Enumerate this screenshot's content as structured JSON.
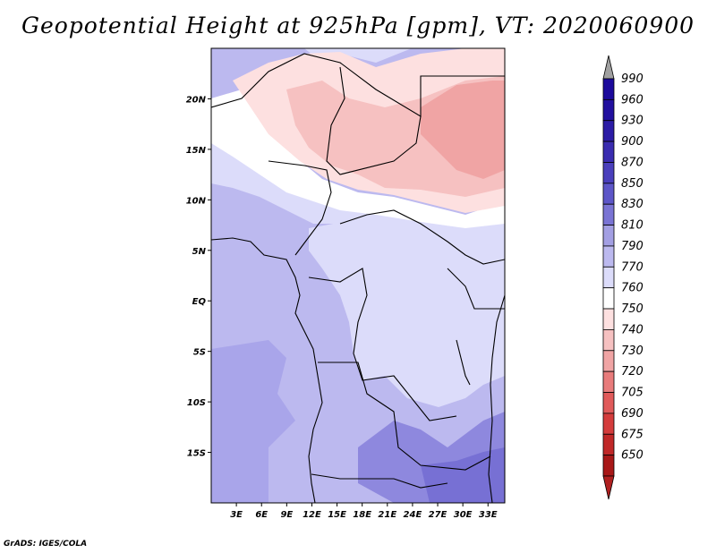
{
  "title": "Geopotential Height at 925hPa [gpm], VT: 2020060900",
  "credit": "GrADS: IGES/COLA",
  "map": {
    "variable": "Geopotential Height",
    "level": "925hPa",
    "units": "gpm",
    "valid_time": "2020060900",
    "lon_range": [
      0,
      35
    ],
    "lat_range": [
      -20,
      25
    ],
    "lat_ticks": [
      {
        "value": 20,
        "label": "20N"
      },
      {
        "value": 15,
        "label": "15N"
      },
      {
        "value": 10,
        "label": "10N"
      },
      {
        "value": 5,
        "label": "5N"
      },
      {
        "value": 0,
        "label": "EQ"
      },
      {
        "value": -5,
        "label": "5S"
      },
      {
        "value": -10,
        "label": "10S"
      },
      {
        "value": -15,
        "label": "15S"
      }
    ],
    "lon_ticks": [
      {
        "value": 3,
        "label": "3E"
      },
      {
        "value": 6,
        "label": "6E"
      },
      {
        "value": 9,
        "label": "9E"
      },
      {
        "value": 12,
        "label": "12E"
      },
      {
        "value": 15,
        "label": "15E"
      },
      {
        "value": 18,
        "label": "18E"
      },
      {
        "value": 21,
        "label": "21E"
      },
      {
        "value": 24,
        "label": "24E"
      },
      {
        "value": 27,
        "label": "27E"
      },
      {
        "value": 30,
        "label": "30E"
      },
      {
        "value": 33,
        "label": "33E"
      }
    ]
  },
  "colorbar": {
    "levels": [
      {
        "label": "990",
        "color": "#1c0a9c"
      },
      {
        "label": "960",
        "color": "#22109f"
      },
      {
        "label": "930",
        "color": "#2c1ca6"
      },
      {
        "label": "900",
        "color": "#3a2cb0"
      },
      {
        "label": "870",
        "color": "#4a3fbc"
      },
      {
        "label": "850",
        "color": "#5d56c8"
      },
      {
        "label": "830",
        "color": "#7a74d4"
      },
      {
        "label": "810",
        "color": "#a39fe3"
      },
      {
        "label": "790",
        "color": "#bcb9ef"
      },
      {
        "label": "770",
        "color": "#dcdcfa"
      },
      {
        "label": "760",
        "color": "#ffffff"
      },
      {
        "label": "750",
        "color": "#fde0e0"
      },
      {
        "label": "740",
        "color": "#f6c1c1"
      },
      {
        "label": "730",
        "color": "#f0a4a4"
      },
      {
        "label": "720",
        "color": "#e87b7b"
      },
      {
        "label": "705",
        "color": "#e05a5a"
      },
      {
        "label": "690",
        "color": "#d43c3c"
      },
      {
        "label": "675",
        "color": "#c02828"
      },
      {
        "label": "650",
        "color": "#a81818"
      }
    ],
    "top_arrow_color": "#a0a0a0",
    "bottom_arrow_color": "#b02020"
  }
}
